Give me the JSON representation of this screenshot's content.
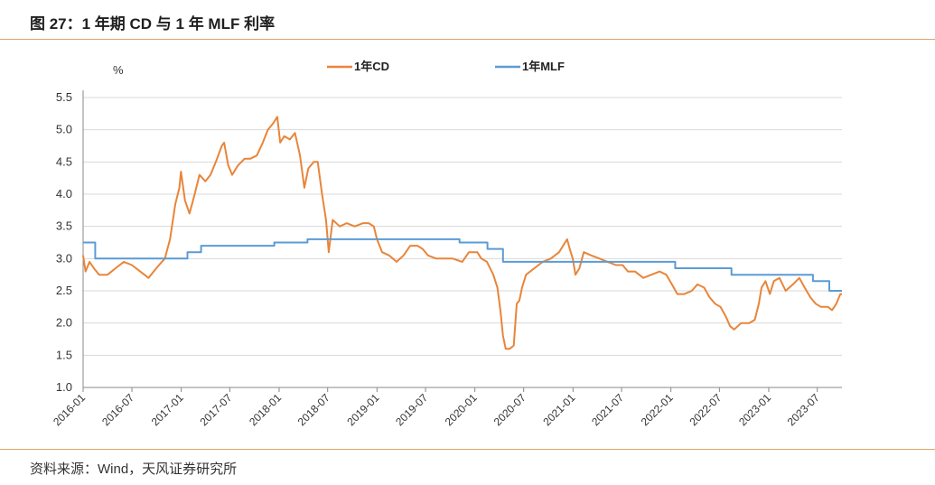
{
  "figure": {
    "title": "图 27：1 年期 CD 与 1 年 MLF 利率",
    "source": "资料来源：Wind，天风证券研究所"
  },
  "colors": {
    "accent_rule": "#e0a36a",
    "cd_line": "#e8853a",
    "mlf_line": "#5b9bd5",
    "grid": "#d9d9d9",
    "axis": "#888888"
  },
  "chart_data": {
    "type": "line",
    "ylabel": "%",
    "ylim": [
      1.0,
      5.5
    ],
    "yticks": [
      1.0,
      1.5,
      2.0,
      2.5,
      3.0,
      3.5,
      4.0,
      4.5,
      5.0,
      5.5
    ],
    "xlim": [
      "2016-01",
      "2023-10"
    ],
    "xticks": [
      "2016-01",
      "2016-07",
      "2017-01",
      "2017-07",
      "2018-01",
      "2018-07",
      "2019-01",
      "2019-07",
      "2020-01",
      "2020-07",
      "2021-01",
      "2021-07",
      "2022-01",
      "2022-07",
      "2023-01",
      "2023-07"
    ],
    "grid": "horizontal",
    "legend_position": "top-center",
    "series": [
      {
        "name": "1年CD",
        "color": "#e8853a",
        "points": [
          [
            "2016-01-01",
            3.05
          ],
          [
            "2016-01-10",
            2.8
          ],
          [
            "2016-01-25",
            2.95
          ],
          [
            "2016-02-10",
            2.85
          ],
          [
            "2016-03-01",
            2.75
          ],
          [
            "2016-04-01",
            2.75
          ],
          [
            "2016-05-01",
            2.85
          ],
          [
            "2016-06-01",
            2.95
          ],
          [
            "2016-07-01",
            2.9
          ],
          [
            "2016-08-01",
            2.8
          ],
          [
            "2016-09-01",
            2.7
          ],
          [
            "2016-09-20",
            2.8
          ],
          [
            "2016-10-10",
            2.9
          ],
          [
            "2016-11-01",
            3.0
          ],
          [
            "2016-11-20",
            3.3
          ],
          [
            "2016-12-10",
            3.85
          ],
          [
            "2016-12-25",
            4.1
          ],
          [
            "2016-12-31",
            4.35
          ],
          [
            "2017-01-15",
            3.9
          ],
          [
            "2017-02-01",
            3.7
          ],
          [
            "2017-02-20",
            4.0
          ],
          [
            "2017-03-10",
            4.3
          ],
          [
            "2017-04-01",
            4.2
          ],
          [
            "2017-04-20",
            4.3
          ],
          [
            "2017-05-10",
            4.5
          ],
          [
            "2017-06-01",
            4.75
          ],
          [
            "2017-06-10",
            4.8
          ],
          [
            "2017-06-25",
            4.45
          ],
          [
            "2017-07-10",
            4.3
          ],
          [
            "2017-08-01",
            4.45
          ],
          [
            "2017-08-25",
            4.55
          ],
          [
            "2017-09-15",
            4.55
          ],
          [
            "2017-10-10",
            4.6
          ],
          [
            "2017-11-01",
            4.8
          ],
          [
            "2017-11-20",
            5.0
          ],
          [
            "2017-12-10",
            5.1
          ],
          [
            "2017-12-25",
            5.2
          ],
          [
            "2018-01-05",
            4.8
          ],
          [
            "2018-01-20",
            4.9
          ],
          [
            "2018-02-10",
            4.85
          ],
          [
            "2018-03-01",
            4.95
          ],
          [
            "2018-03-20",
            4.6
          ],
          [
            "2018-04-05",
            4.1
          ],
          [
            "2018-04-20",
            4.4
          ],
          [
            "2018-05-10",
            4.5
          ],
          [
            "2018-05-25",
            4.5
          ],
          [
            "2018-06-10",
            4.0
          ],
          [
            "2018-06-25",
            3.6
          ],
          [
            "2018-07-05",
            3.1
          ],
          [
            "2018-07-20",
            3.6
          ],
          [
            "2018-08-15",
            3.5
          ],
          [
            "2018-09-10",
            3.55
          ],
          [
            "2018-10-10",
            3.5
          ],
          [
            "2018-11-10",
            3.55
          ],
          [
            "2018-12-01",
            3.55
          ],
          [
            "2018-12-20",
            3.5
          ],
          [
            "2019-01-01",
            3.3
          ],
          [
            "2019-01-20",
            3.1
          ],
          [
            "2019-02-15",
            3.05
          ],
          [
            "2019-03-15",
            2.95
          ],
          [
            "2019-04-10",
            3.05
          ],
          [
            "2019-05-05",
            3.2
          ],
          [
            "2019-06-01",
            3.2
          ],
          [
            "2019-06-20",
            3.15
          ],
          [
            "2019-07-10",
            3.05
          ],
          [
            "2019-08-10",
            3.0
          ],
          [
            "2019-09-10",
            3.0
          ],
          [
            "2019-10-10",
            3.0
          ],
          [
            "2019-11-15",
            2.95
          ],
          [
            "2019-12-10",
            3.1
          ],
          [
            "2020-01-10",
            3.1
          ],
          [
            "2020-01-25",
            3.0
          ],
          [
            "2020-02-15",
            2.95
          ],
          [
            "2020-03-10",
            2.75
          ],
          [
            "2020-03-25",
            2.55
          ],
          [
            "2020-04-05",
            2.2
          ],
          [
            "2020-04-15",
            1.8
          ],
          [
            "2020-04-25",
            1.6
          ],
          [
            "2020-05-10",
            1.6
          ],
          [
            "2020-05-25",
            1.65
          ],
          [
            "2020-06-05",
            2.3
          ],
          [
            "2020-06-15",
            2.35
          ],
          [
            "2020-06-25",
            2.55
          ],
          [
            "2020-07-10",
            2.75
          ],
          [
            "2020-08-10",
            2.85
          ],
          [
            "2020-09-10",
            2.95
          ],
          [
            "2020-10-10",
            3.0
          ],
          [
            "2020-11-10",
            3.1
          ],
          [
            "2020-11-25",
            3.2
          ],
          [
            "2020-12-10",
            3.3
          ],
          [
            "2020-12-20",
            3.15
          ],
          [
            "2020-12-31",
            3.0
          ],
          [
            "2021-01-10",
            2.75
          ],
          [
            "2021-01-25",
            2.85
          ],
          [
            "2021-02-10",
            3.1
          ],
          [
            "2021-03-10",
            3.05
          ],
          [
            "2021-04-10",
            3.0
          ],
          [
            "2021-05-10",
            2.95
          ],
          [
            "2021-06-10",
            2.9
          ],
          [
            "2021-07-05",
            2.9
          ],
          [
            "2021-07-25",
            2.8
          ],
          [
            "2021-08-20",
            2.8
          ],
          [
            "2021-09-20",
            2.7
          ],
          [
            "2021-10-20",
            2.75
          ],
          [
            "2021-11-20",
            2.8
          ],
          [
            "2021-12-15",
            2.75
          ],
          [
            "2022-01-05",
            2.6
          ],
          [
            "2022-01-25",
            2.45
          ],
          [
            "2022-02-20",
            2.45
          ],
          [
            "2022-03-20",
            2.5
          ],
          [
            "2022-04-10",
            2.6
          ],
          [
            "2022-05-05",
            2.55
          ],
          [
            "2022-05-25",
            2.4
          ],
          [
            "2022-06-15",
            2.3
          ],
          [
            "2022-07-05",
            2.25
          ],
          [
            "2022-07-25",
            2.1
          ],
          [
            "2022-08-10",
            1.95
          ],
          [
            "2022-08-25",
            1.9
          ],
          [
            "2022-09-20",
            2.0
          ],
          [
            "2022-10-20",
            2.0
          ],
          [
            "2022-11-10",
            2.05
          ],
          [
            "2022-11-25",
            2.3
          ],
          [
            "2022-12-05",
            2.55
          ],
          [
            "2022-12-20",
            2.65
          ],
          [
            "2023-01-05",
            2.45
          ],
          [
            "2023-01-20",
            2.65
          ],
          [
            "2023-02-10",
            2.7
          ],
          [
            "2023-03-05",
            2.5
          ],
          [
            "2023-04-01",
            2.6
          ],
          [
            "2023-04-25",
            2.7
          ],
          [
            "2023-05-15",
            2.55
          ],
          [
            "2023-06-05",
            2.4
          ],
          [
            "2023-06-25",
            2.3
          ],
          [
            "2023-07-15",
            2.25
          ],
          [
            "2023-08-10",
            2.25
          ],
          [
            "2023-08-25",
            2.2
          ],
          [
            "2023-09-10",
            2.3
          ],
          [
            "2023-09-25",
            2.45
          ],
          [
            "2023-10-01",
            2.45
          ]
        ]
      },
      {
        "name": "1年MLF",
        "color": "#5b9bd5",
        "points": [
          [
            "2016-01-01",
            3.25
          ],
          [
            "2016-02-15",
            3.25
          ],
          [
            "2016-02-15",
            3.0
          ],
          [
            "2017-01-24",
            3.0
          ],
          [
            "2017-01-24",
            3.1
          ],
          [
            "2017-03-16",
            3.1
          ],
          [
            "2017-03-16",
            3.2
          ],
          [
            "2017-12-14",
            3.2
          ],
          [
            "2017-12-14",
            3.25
          ],
          [
            "2018-04-17",
            3.25
          ],
          [
            "2018-04-17",
            3.3
          ],
          [
            "2019-11-05",
            3.3
          ],
          [
            "2019-11-05",
            3.25
          ],
          [
            "2020-02-17",
            3.25
          ],
          [
            "2020-02-17",
            3.15
          ],
          [
            "2020-04-15",
            3.15
          ],
          [
            "2020-04-15",
            2.95
          ],
          [
            "2022-01-17",
            2.95
          ],
          [
            "2022-01-17",
            2.85
          ],
          [
            "2022-08-15",
            2.85
          ],
          [
            "2022-08-15",
            2.75
          ],
          [
            "2023-06-15",
            2.75
          ],
          [
            "2023-06-15",
            2.65
          ],
          [
            "2023-08-15",
            2.65
          ],
          [
            "2023-08-15",
            2.5
          ],
          [
            "2023-10-01",
            2.5
          ]
        ]
      }
    ]
  }
}
